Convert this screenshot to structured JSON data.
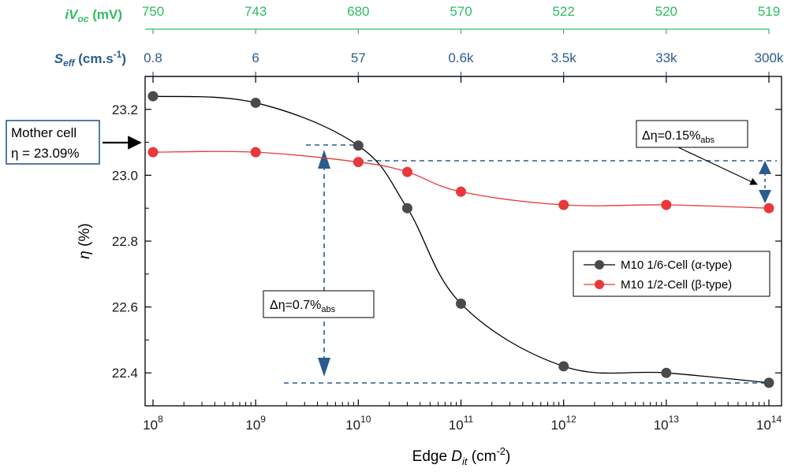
{
  "chart_data": {
    "type": "scatter",
    "xscale": "log",
    "xlim": [
      100000000.0,
      100000000000000.0
    ],
    "ylim": [
      22.3,
      23.3
    ],
    "grid": false,
    "legend_position": "right",
    "xlabel": {
      "pre": "Edge ",
      "italic": "D",
      "sub": "it",
      "post": " (cm",
      "sup": "-2",
      "end": ")"
    },
    "ylabel": {
      "italic": "η",
      "rest": " (%)"
    },
    "x_ticks": [
      {
        "base": "10",
        "exp": "8",
        "value": 100000000.0
      },
      {
        "base": "10",
        "exp": "9",
        "value": 1000000000.0
      },
      {
        "base": "10",
        "exp": "10",
        "value": 10000000000.0
      },
      {
        "base": "10",
        "exp": "11",
        "value": 100000000000.0
      },
      {
        "base": "10",
        "exp": "12",
        "value": 1000000000000.0
      },
      {
        "base": "10",
        "exp": "13",
        "value": 10000000000000.0
      },
      {
        "base": "10",
        "exp": "14",
        "value": 100000000000000.0
      }
    ],
    "y_ticks": [
      {
        "label": "22.4",
        "value": 22.4
      },
      {
        "label": "22.6",
        "value": 22.6
      },
      {
        "label": "22.8",
        "value": 22.8
      },
      {
        "label": "23.0",
        "value": 23.0
      },
      {
        "label": "23.2",
        "value": 23.2
      }
    ],
    "top_axes": {
      "ivoc": {
        "label_italic": "iV",
        "label_sub": "oc",
        "label_rest": " (mV)",
        "color": "#2ebd60",
        "ticks": [
          "750",
          "743",
          "680",
          "570",
          "522",
          "520",
          "519"
        ]
      },
      "seff": {
        "label_italic": "S",
        "label_sub": "eff",
        "label_rest": " (cm.s",
        "label_sup": "-1",
        "label_end": ")",
        "color": "#2b5c8f",
        "ticks": [
          "0.8",
          "6",
          "57",
          "0.6k",
          "3.5k",
          "33k",
          "300k"
        ]
      }
    },
    "series": [
      {
        "name": "M10 1/6-Cell (α-type)",
        "color": "#4a4a4a",
        "line_color": "#000000",
        "x": [
          100000000.0,
          1000000000.0,
          10000000000.0,
          30000000000.0,
          100000000000.0,
          1000000000000.0,
          10000000000000.0,
          100000000000000.0
        ],
        "y": [
          23.24,
          23.22,
          23.09,
          22.9,
          22.61,
          22.42,
          22.4,
          22.37
        ]
      },
      {
        "name": "M10 1/2-Cell (β-type)",
        "color": "#e8393a",
        "line_color": "#e8393a",
        "x": [
          100000000.0,
          1000000000.0,
          10000000000.0,
          30000000000.0,
          100000000000.0,
          1000000000000.0,
          10000000000000.0,
          100000000000000.0
        ],
        "y": [
          23.07,
          23.07,
          23.04,
          23.01,
          22.95,
          22.91,
          22.91,
          22.9
        ]
      }
    ],
    "annotations": {
      "mother_cell": {
        "line1": "Mother cell",
        "line2": "η = 23.09%",
        "value": 23.09
      },
      "delta_small": {
        "pre": "Δη=0.15%",
        "sub": "abs"
      },
      "delta_large": {
        "pre": "Δη=0.7%",
        "sub": "abs"
      }
    }
  }
}
